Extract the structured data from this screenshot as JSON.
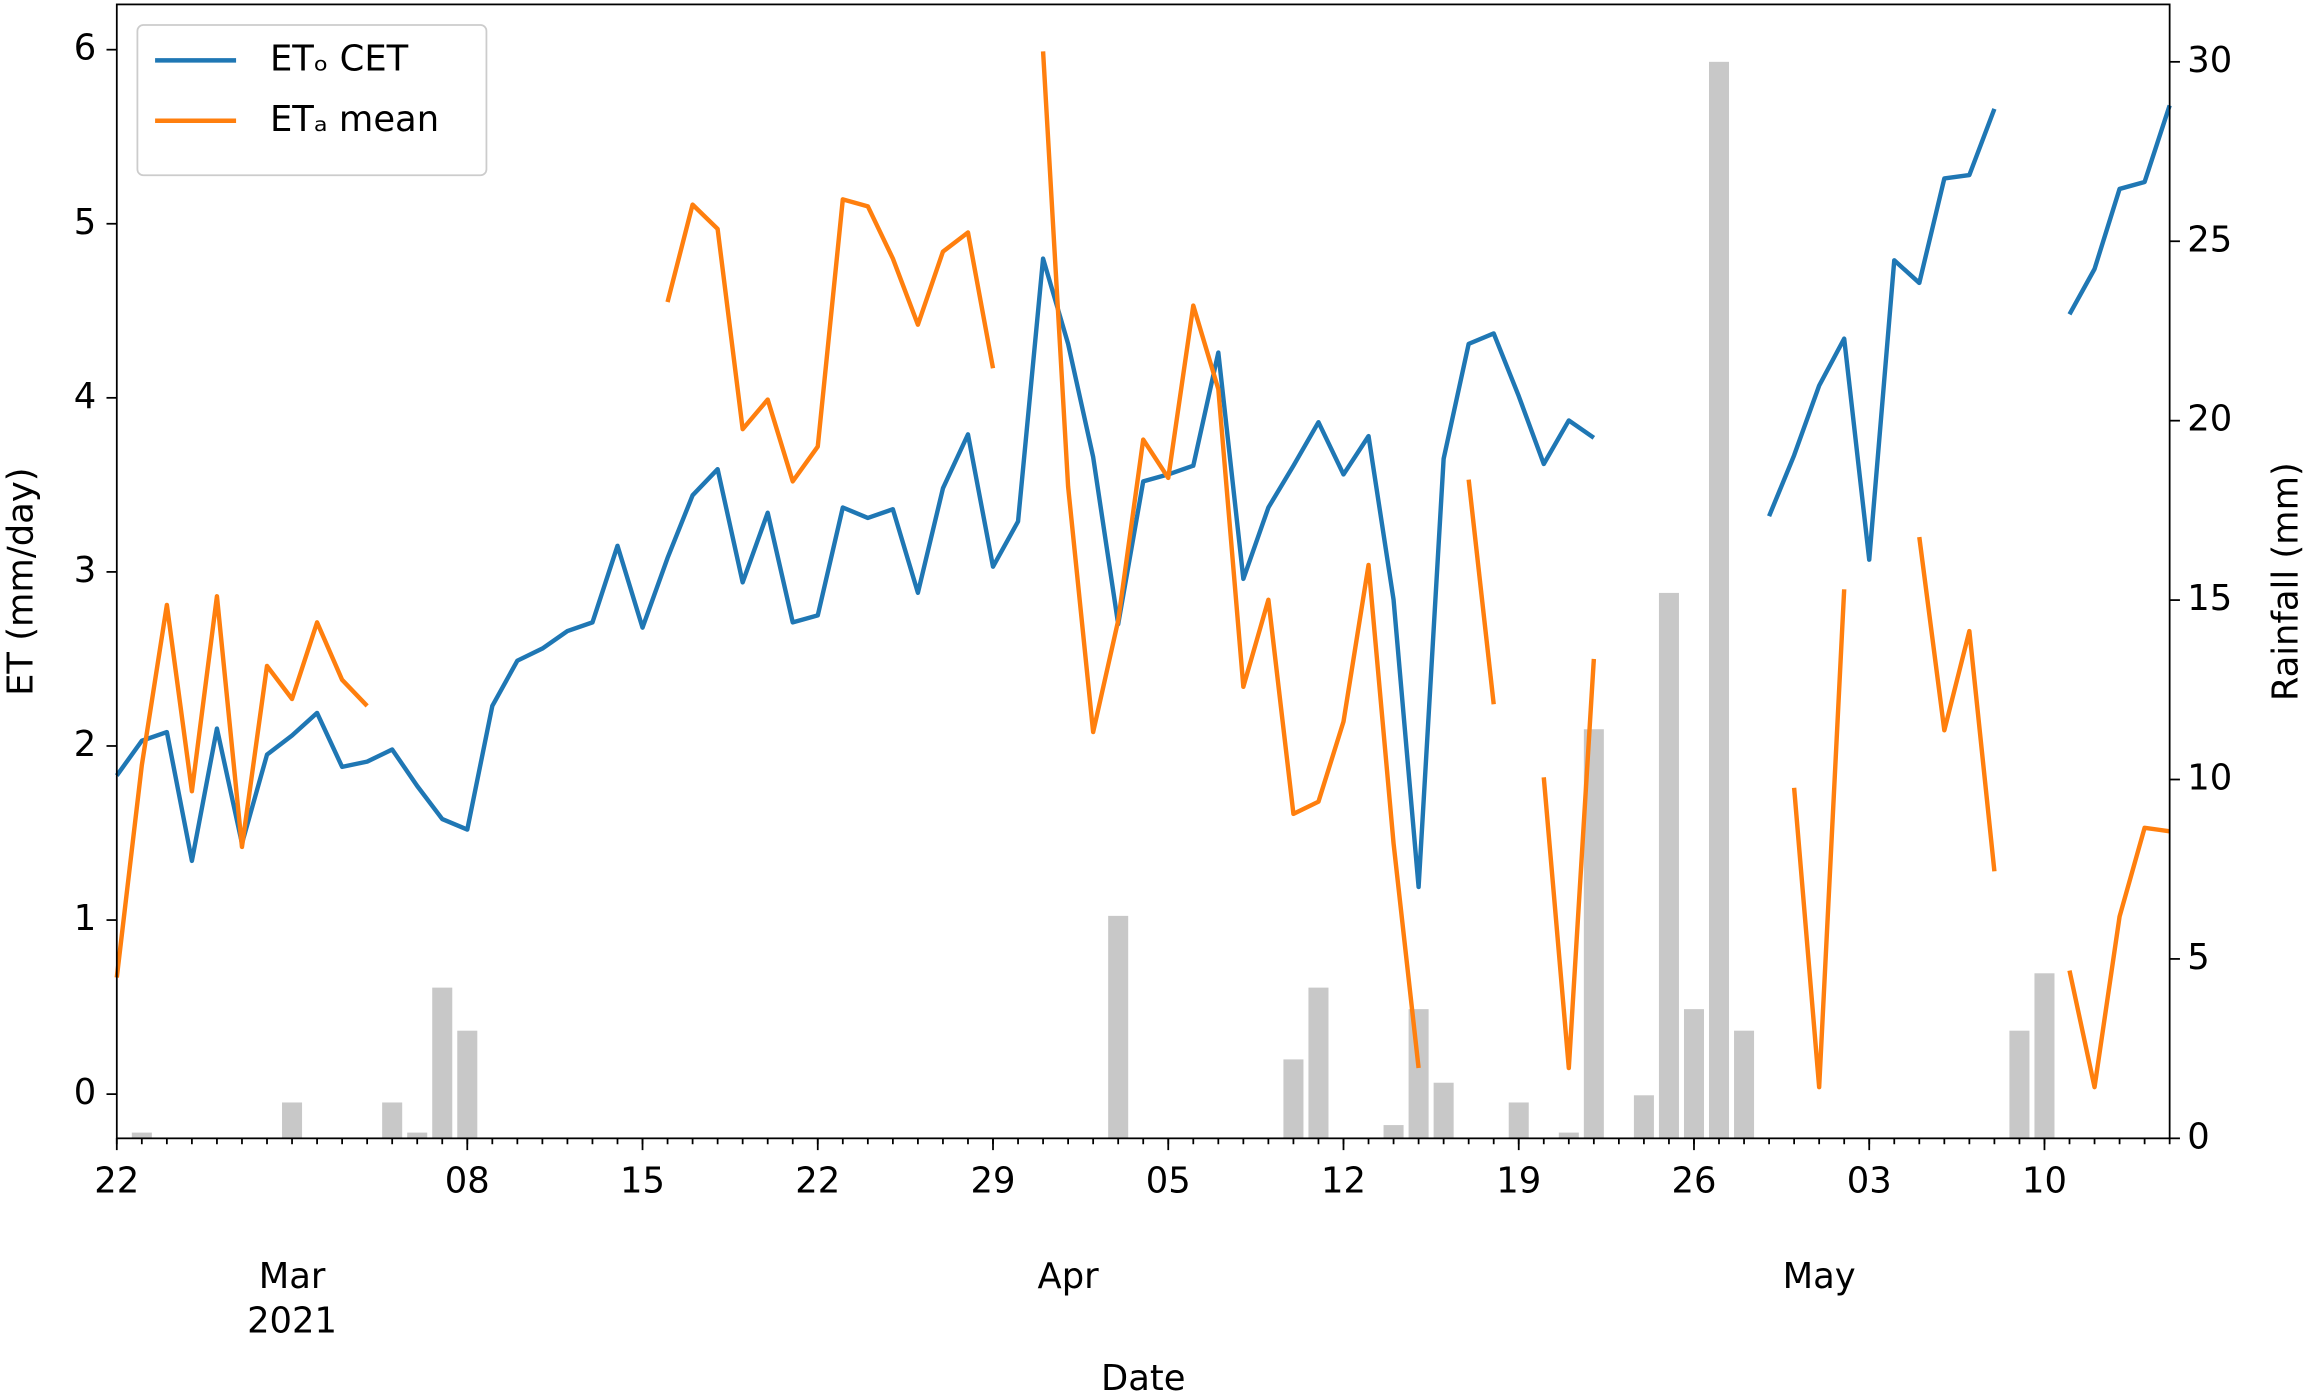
{
  "chart_data": {
    "type": "line",
    "x_label": "Date",
    "y_label": "ET (mm/day)",
    "y2_label": "Rainfall (mm)",
    "x": [
      "2021-02-22",
      "2021-02-23",
      "2021-02-24",
      "2021-02-25",
      "2021-02-26",
      "2021-02-27",
      "2021-02-28",
      "2021-03-01",
      "2021-03-02",
      "2021-03-03",
      "2021-03-04",
      "2021-03-05",
      "2021-03-06",
      "2021-03-07",
      "2021-03-08",
      "2021-03-09",
      "2021-03-10",
      "2021-03-11",
      "2021-03-12",
      "2021-03-13",
      "2021-03-14",
      "2021-03-15",
      "2021-03-16",
      "2021-03-17",
      "2021-03-18",
      "2021-03-19",
      "2021-03-20",
      "2021-03-21",
      "2021-03-22",
      "2021-03-23",
      "2021-03-24",
      "2021-03-25",
      "2021-03-26",
      "2021-03-27",
      "2021-03-28",
      "2021-03-29",
      "2021-03-30",
      "2021-03-31",
      "2021-04-01",
      "2021-04-02",
      "2021-04-03",
      "2021-04-04",
      "2021-04-05",
      "2021-04-06",
      "2021-04-07",
      "2021-04-08",
      "2021-04-09",
      "2021-04-10",
      "2021-04-11",
      "2021-04-12",
      "2021-04-13",
      "2021-04-14",
      "2021-04-15",
      "2021-04-16",
      "2021-04-17",
      "2021-04-18",
      "2021-04-19",
      "2021-04-20",
      "2021-04-21",
      "2021-04-22",
      "2021-04-23",
      "2021-04-24",
      "2021-04-25",
      "2021-04-26",
      "2021-04-27",
      "2021-04-28",
      "2021-04-29",
      "2021-04-30",
      "2021-05-01",
      "2021-05-02",
      "2021-05-03",
      "2021-05-04",
      "2021-05-05",
      "2021-05-06",
      "2021-05-07",
      "2021-05-08",
      "2021-05-09",
      "2021-05-10",
      "2021-05-11",
      "2021-05-12",
      "2021-05-13",
      "2021-05-14",
      "2021-05-15"
    ],
    "series": [
      {
        "name": "ETₒ CET",
        "color": "#1f77b4",
        "values": [
          1.83,
          2.03,
          2.08,
          1.34,
          2.1,
          1.44,
          1.95,
          2.06,
          2.19,
          1.88,
          1.91,
          1.98,
          1.77,
          1.58,
          1.52,
          2.23,
          2.49,
          2.56,
          2.66,
          2.71,
          3.15,
          2.68,
          3.08,
          3.44,
          3.59,
          2.94,
          3.34,
          2.71,
          2.75,
          3.37,
          3.31,
          3.36,
          2.88,
          3.48,
          3.79,
          3.03,
          3.29,
          4.8,
          4.31,
          3.66,
          2.7,
          3.52,
          3.56,
          3.61,
          4.26,
          2.96,
          3.37,
          3.61,
          3.86,
          3.56,
          3.78,
          2.84,
          1.19,
          3.65,
          4.31,
          4.37,
          4.01,
          3.62,
          3.87,
          3.77,
          null,
          null,
          null,
          null,
          null,
          null,
          3.32,
          3.67,
          4.07,
          4.34,
          3.07,
          4.79,
          4.66,
          5.26,
          5.28,
          5.66,
          null,
          null,
          4.48,
          4.74,
          5.2,
          5.24,
          5.68
        ]
      },
      {
        "name": "ETₐ mean",
        "color": "#ff7f0e",
        "values": [
          0.67,
          1.89,
          2.81,
          1.74,
          2.86,
          1.42,
          2.46,
          2.27,
          2.71,
          2.38,
          2.23,
          null,
          null,
          null,
          null,
          null,
          null,
          null,
          null,
          null,
          null,
          null,
          4.55,
          5.11,
          4.97,
          3.82,
          3.99,
          3.52,
          3.72,
          5.14,
          5.1,
          4.8,
          4.42,
          4.84,
          4.95,
          4.17,
          null,
          5.99,
          3.49,
          2.08,
          2.72,
          3.76,
          3.54,
          4.53,
          4.05,
          2.34,
          2.84,
          1.61,
          1.68,
          2.14,
          3.04,
          1.44,
          0.15,
          null,
          3.53,
          2.24,
          null,
          1.82,
          0.15,
          2.5,
          null,
          null,
          null,
          null,
          null,
          null,
          null,
          1.76,
          0.04,
          2.9,
          null,
          null,
          3.2,
          2.09,
          2.66,
          1.28,
          null,
          null,
          0.71,
          0.04,
          1.02,
          1.53,
          1.51
        ]
      },
      {
        "name": "Rainfall",
        "type": "bar",
        "axis": "y2",
        "color": "#c8c8c8",
        "values": [
          0,
          0.16,
          0,
          0,
          0,
          0,
          0,
          1.0,
          0,
          0,
          0,
          1.0,
          0.16,
          4.2,
          3.0,
          0,
          0,
          0,
          0,
          0,
          0,
          0,
          0,
          0,
          0,
          0,
          0,
          0,
          0,
          0,
          0,
          0,
          0,
          0,
          0,
          0,
          0,
          0,
          0,
          0,
          6.2,
          0,
          0,
          0,
          0,
          0,
          0,
          2.2,
          4.2,
          0,
          0,
          0.37,
          3.6,
          1.55,
          0,
          0,
          1.0,
          0,
          0.16,
          11.4,
          0,
          1.2,
          15.2,
          3.6,
          30.0,
          3.0,
          0,
          0,
          0,
          0,
          0,
          0,
          0,
          0,
          0,
          0,
          3.0,
          4.6,
          0,
          0,
          0,
          0,
          0
        ]
      }
    ],
    "xlim": [
      "2021-02-22",
      "2021-05-15"
    ],
    "xticks": [
      {
        "value": "2021-02-22",
        "label": "22"
      },
      {
        "value": "2021-03-08",
        "label": "08"
      },
      {
        "value": "2021-03-15",
        "label": "15"
      },
      {
        "value": "2021-03-22",
        "label": "22"
      },
      {
        "value": "2021-03-29",
        "label": "29"
      },
      {
        "value": "2021-04-05",
        "label": "05"
      },
      {
        "value": "2021-04-12",
        "label": "12"
      },
      {
        "value": "2021-04-19",
        "label": "19"
      },
      {
        "value": "2021-04-26",
        "label": "26"
      },
      {
        "value": "2021-05-03",
        "label": "03"
      },
      {
        "value": "2021-05-10",
        "label": "10"
      }
    ],
    "month_ticks": [
      {
        "value": "2021-03-01",
        "label": "Mar"
      },
      {
        "value": "2021-04-01",
        "label": "Apr"
      },
      {
        "value": "2021-05-01",
        "label": "May"
      }
    ],
    "year_label": "2021",
    "ylim": [
      -0.254,
      6.26
    ],
    "yticks": [
      0,
      1,
      2,
      3,
      4,
      5,
      6
    ],
    "y2lim": [
      0,
      31.6
    ],
    "y2ticks": [
      0,
      5,
      10,
      15,
      20,
      25,
      30
    ],
    "legend": "upper left"
  }
}
